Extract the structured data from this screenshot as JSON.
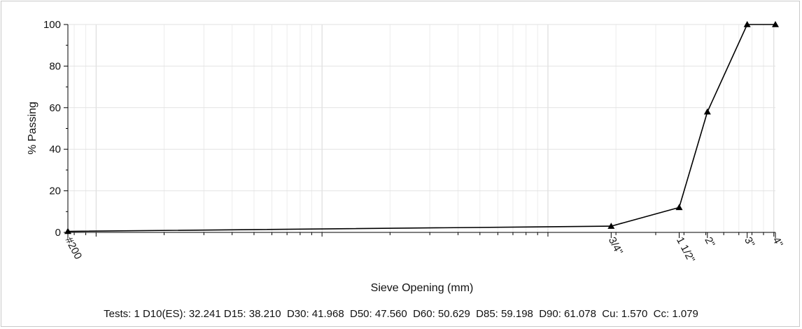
{
  "chart_data": {
    "type": "line",
    "xlabel": "Sieve Opening (mm)",
    "ylabel": "% Passing",
    "x_scale": "log",
    "xlim": [
      0.075,
      101.6
    ],
    "ylim": [
      0,
      100
    ],
    "y_ticks": [
      0,
      20,
      40,
      60,
      80,
      100
    ],
    "x_tick_labels": [
      {
        "label": "#200",
        "x": 0.075
      },
      {
        "label": "3/4\"",
        "x": 19.05
      },
      {
        "label": "1 1/2\"",
        "x": 38.1
      },
      {
        "label": "2\"",
        "x": 50.8
      },
      {
        "label": "3\"",
        "x": 76.2
      },
      {
        "label": "4\"",
        "x": 101.6
      }
    ],
    "grid": true,
    "series": [
      {
        "marker": "triangle",
        "color": "#000000",
        "points": [
          {
            "x": 0.075,
            "y": 0.5
          },
          {
            "x": 19.05,
            "y": 3
          },
          {
            "x": 38.1,
            "y": 12
          },
          {
            "x": 50.8,
            "y": 58
          },
          {
            "x": 76.2,
            "y": 100
          },
          {
            "x": 101.6,
            "y": 100
          }
        ]
      }
    ]
  },
  "footer": {
    "summary": "Tests: 1 D10(ES): 32.241 D15: 38.210  D30: 41.968  D50: 47.560  D60: 50.629  D85: 59.198  D90: 61.078  Cu: 1.570  Cc: 1.079"
  }
}
